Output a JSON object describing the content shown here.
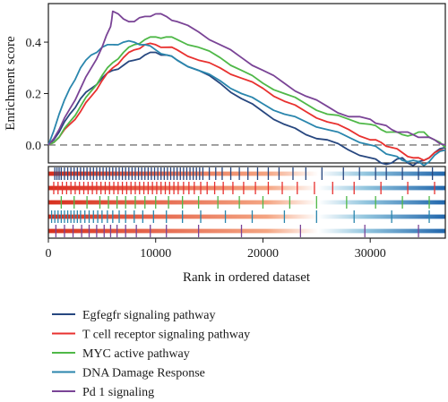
{
  "chart_data": {
    "type": "line",
    "xlabel": "Rank in ordered dataset",
    "ylabel": "Enrichment score",
    "xlim": [
      0,
      37000
    ],
    "ylim": [
      -0.07,
      0.55
    ],
    "x_ticks": [
      0,
      10000,
      20000,
      30000
    ],
    "x_tick_labels": [
      "0",
      "10000",
      "20000",
      "30000"
    ],
    "y_ticks": [
      0.0,
      0.2,
      0.4
    ],
    "y_tick_labels": [
      "0.0",
      "0.2",
      "0.4"
    ],
    "zero_line": {
      "value": 0.0,
      "style": "dashed"
    },
    "legend_position": "bottom",
    "series": [
      {
        "name": "Egfegfr signaling pathway",
        "color": "#27477f",
        "x": [
          0,
          1000,
          2000,
          3000,
          4000,
          5000,
          6000,
          7000,
          8000,
          9000,
          10000,
          11000,
          12000,
          14000,
          16000,
          18000,
          20000,
          22000,
          24000,
          26000,
          28000,
          30000,
          31000,
          32000,
          33000,
          34000,
          35000,
          36000,
          37000
        ],
        "values": [
          0.0,
          0.05,
          0.12,
          0.18,
          0.22,
          0.26,
          0.29,
          0.31,
          0.33,
          0.35,
          0.36,
          0.35,
          0.33,
          0.29,
          0.24,
          0.18,
          0.13,
          0.08,
          0.04,
          0.02,
          -0.02,
          -0.05,
          -0.07,
          -0.07,
          -0.05,
          -0.08,
          -0.06,
          -0.03,
          -0.01
        ],
        "hits": [
          600,
          800,
          1000,
          1200,
          1500,
          1800,
          2100,
          2400,
          2700,
          3000,
          3300,
          3600,
          3900,
          4200,
          4500,
          4800,
          5100,
          5400,
          5700,
          6000,
          6300,
          6600,
          6900,
          7200,
          7500,
          7800,
          8100,
          8400,
          8700,
          9000,
          9300,
          9600,
          9900,
          10200,
          10500,
          10800,
          11100,
          11400,
          11700,
          12000,
          12300,
          12600,
          12900,
          13200,
          13500,
          13800,
          14100,
          14400,
          15000,
          15600,
          16200,
          17000,
          17800,
          18600,
          19500,
          20500,
          21500,
          22800,
          24000,
          25500,
          27500,
          29000,
          30500,
          31500,
          33000,
          34500,
          35800
        ]
      },
      {
        "name": "T cell receptor signaling pathway",
        "color": "#e8312f",
        "x": [
          0,
          1000,
          2000,
          3000,
          4000,
          5000,
          6000,
          7000,
          8000,
          9000,
          10000,
          11000,
          12000,
          14000,
          16000,
          18000,
          20000,
          22000,
          24000,
          26000,
          28000,
          30000,
          31000,
          32000,
          33000,
          34000,
          35000,
          36000,
          37000
        ],
        "values": [
          0.0,
          0.03,
          0.08,
          0.13,
          0.19,
          0.25,
          0.3,
          0.34,
          0.37,
          0.39,
          0.39,
          0.38,
          0.37,
          0.33,
          0.3,
          0.26,
          0.22,
          0.17,
          0.13,
          0.09,
          0.06,
          0.02,
          0.01,
          -0.01,
          -0.03,
          -0.05,
          -0.06,
          -0.03,
          -0.02
        ],
        "hits": [
          500,
          900,
          1300,
          1700,
          2100,
          2500,
          2900,
          3300,
          3700,
          4100,
          4500,
          4900,
          5300,
          5700,
          6100,
          6500,
          6900,
          7300,
          7700,
          8100,
          8500,
          8900,
          9300,
          9700,
          10100,
          10500,
          10900,
          11300,
          11700,
          12100,
          12600,
          13100,
          13600,
          14200,
          14800,
          15500,
          16300,
          17200,
          18200,
          19300,
          20500,
          21800,
          23200,
          24800,
          26500,
          28500,
          31000,
          33500,
          36000
        ]
      },
      {
        "name": "MYC active pathway",
        "color": "#4fb848",
        "x": [
          0,
          1000,
          2000,
          3000,
          4000,
          5000,
          6000,
          7000,
          8000,
          9000,
          10000,
          11000,
          12000,
          14000,
          16000,
          18000,
          20000,
          22000,
          24000,
          26000,
          28000,
          30000,
          31000,
          32000,
          33000,
          34000,
          35000,
          36000,
          37000
        ],
        "values": [
          0.0,
          0.03,
          0.09,
          0.15,
          0.21,
          0.27,
          0.32,
          0.36,
          0.39,
          0.41,
          0.42,
          0.42,
          0.41,
          0.38,
          0.34,
          0.29,
          0.24,
          0.2,
          0.16,
          0.12,
          0.1,
          0.08,
          0.06,
          0.05,
          0.04,
          0.04,
          0.05,
          0.02,
          -0.01
        ],
        "hits": [
          1200,
          2400,
          3600,
          4800,
          5600,
          6400,
          7200,
          8100,
          9000,
          10000,
          11200,
          12500,
          14000,
          15800,
          17800,
          20000,
          22500,
          25000,
          27800,
          30500,
          33000,
          35500
        ]
      },
      {
        "name": "DNA Damage Response",
        "color": "#2a86ad",
        "x": [
          0,
          1000,
          2000,
          3000,
          4000,
          5000,
          6000,
          7000,
          8000,
          9000,
          10000,
          11000,
          12000,
          14000,
          16000,
          18000,
          20000,
          22000,
          24000,
          26000,
          28000,
          30000,
          31000,
          32000,
          33000,
          34000,
          35000,
          36000,
          37000
        ],
        "values": [
          0.0,
          0.12,
          0.22,
          0.3,
          0.35,
          0.38,
          0.39,
          0.4,
          0.4,
          0.39,
          0.37,
          0.35,
          0.33,
          0.29,
          0.25,
          0.2,
          0.16,
          0.12,
          0.09,
          0.06,
          0.03,
          0.0,
          -0.02,
          -0.04,
          -0.06,
          -0.06,
          -0.08,
          -0.04,
          -0.02
        ],
        "hits": [
          300,
          600,
          900,
          1200,
          1500,
          1800,
          2100,
          2400,
          2700,
          3000,
          3400,
          3800,
          4200,
          4600,
          5000,
          5500,
          6000,
          6600,
          7200,
          8000,
          8800,
          9800,
          11000,
          12500,
          14200,
          16500,
          19000,
          22000,
          25000,
          28500,
          32000,
          35500
        ]
      },
      {
        "name": "Pd 1 signaling",
        "color": "#7a4496",
        "x": [
          0,
          1000,
          2000,
          3000,
          4000,
          5000,
          5800,
          6000,
          7000,
          8000,
          9000,
          10000,
          11000,
          12000,
          14000,
          16000,
          18000,
          20000,
          22000,
          24000,
          26000,
          28000,
          30000,
          31000,
          32000,
          33000,
          34000,
          35000,
          36000,
          37000
        ],
        "values": [
          0.0,
          0.06,
          0.14,
          0.22,
          0.3,
          0.38,
          0.46,
          0.52,
          0.49,
          0.48,
          0.5,
          0.51,
          0.5,
          0.48,
          0.44,
          0.39,
          0.34,
          0.29,
          0.24,
          0.19,
          0.15,
          0.11,
          0.1,
          0.08,
          0.06,
          0.05,
          0.04,
          0.03,
          0.02,
          0.0
        ],
        "hits": [
          700,
          1500,
          2300,
          3100,
          3800,
          4500,
          5200,
          5800,
          6400,
          7200,
          8200,
          9500,
          11000,
          14000,
          18000,
          23500,
          29500,
          34500
        ]
      }
    ]
  }
}
